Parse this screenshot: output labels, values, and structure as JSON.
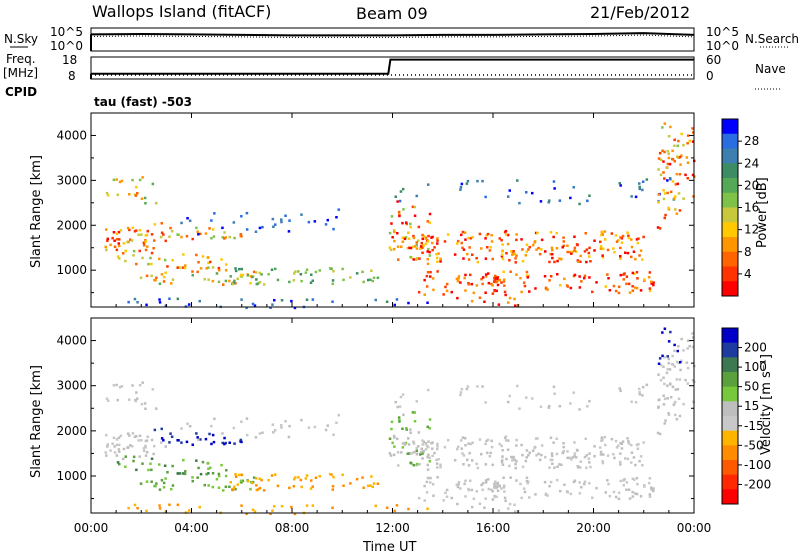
{
  "header": {
    "station": "Wallops Island (fitACF)",
    "beam": "Beam 09",
    "date": "21/Feb/2012",
    "mode": "tau (fast) -503"
  },
  "strips": {
    "nsky_label": "N.Sky",
    "nsearch_label": "N.Search",
    "freq_label_line1": "Freq.",
    "freq_label_line2": "[MHz]",
    "nave_label": "Nave",
    "cpid_label": "CPID",
    "nsky_ticks": [
      "10^5",
      "10^0"
    ],
    "nsearch_ticks": [
      "10^5",
      "10^0"
    ],
    "freq_ticks": [
      "18",
      "8"
    ],
    "nave_ticks": [
      "60",
      "0"
    ]
  },
  "colors": {
    "power_scale": [
      "#0000ff",
      "#2a6de0",
      "#3c7fb0",
      "#3c8c64",
      "#55a855",
      "#7fc24a",
      "#c8c83c",
      "#ffc800",
      "#ff9600",
      "#ff6400",
      "#ff3200",
      "#ff0000"
    ],
    "velocity_scale": [
      "#0000c8",
      "#1e3ca0",
      "#3c7850",
      "#5aa03c",
      "#78c83c",
      "#bebebe",
      "#c8c8c8",
      "#ffb400",
      "#ff8c00",
      "#ff5a00",
      "#ff2800",
      "#ff0000"
    ]
  },
  "chart_data": [
    {
      "type": "line",
      "name": "N.Sky / N.Search",
      "x": [
        "00:00",
        "02:00",
        "04:00",
        "06:00",
        "08:00",
        "10:00",
        "12:00",
        "14:00",
        "16:00",
        "18:00",
        "20:00",
        "22:00",
        "24:00"
      ],
      "y": [
        3.6,
        3.7,
        3.6,
        3.5,
        3.4,
        3.4,
        3.4,
        3.5,
        3.5,
        3.6,
        3.7,
        3.9,
        3.5
      ],
      "ylabel_top": "10^5",
      "ylabel_bottom": "10^0"
    },
    {
      "type": "line",
      "name": "Freq / Nave",
      "freq_x": [
        "00:00",
        "11:50",
        "11:55",
        "24:00"
      ],
      "freq_y": [
        10.4,
        10.4,
        16.8,
        16.8
      ],
      "nave_x": [
        "00:00",
        "24:00"
      ],
      "nave_y": [
        11,
        11
      ],
      "freq_ylim": [
        8,
        18
      ],
      "nave_ylim": [
        0,
        60
      ]
    },
    {
      "type": "heatmap",
      "name": "Power",
      "ylabel": "Slant Range [km]",
      "xlim_hours": [
        0,
        24
      ],
      "ylim_km": [
        180,
        4500
      ],
      "yticks": [
        1000,
        2000,
        3000,
        4000
      ],
      "colorbar_label": "Power [dB]",
      "colorbar_ticks": [
        "4",
        "8",
        "12",
        "16",
        "20",
        "24",
        "28"
      ],
      "colorbar_range": [
        0,
        30
      ]
    },
    {
      "type": "heatmap",
      "name": "Velocity",
      "ylabel": "Slant Range [km]",
      "xlabel": "Time UT",
      "xlim_hours": [
        0,
        24
      ],
      "ylim_km": [
        180,
        4500
      ],
      "yticks": [
        1000,
        2000,
        3000,
        4000
      ],
      "xticks": [
        "00:00",
        "04:00",
        "08:00",
        "12:00",
        "16:00",
        "20:00",
        "00:00"
      ],
      "colorbar_label": "Velocity [m s⁻¹]",
      "colorbar_ticks": [
        "200",
        "100",
        "50",
        "15",
        "-15",
        "-50",
        "-100",
        "-200"
      ]
    }
  ]
}
